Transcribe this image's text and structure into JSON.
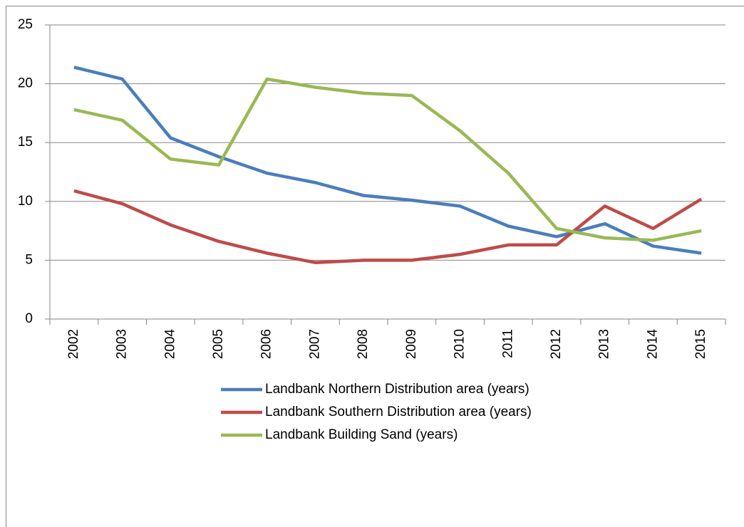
{
  "chart_data": {
    "type": "line",
    "categories": [
      "2002",
      "2003",
      "2004",
      "2005",
      "2006",
      "2007",
      "2008",
      "2009",
      "2010",
      "2011",
      "2012",
      "2013",
      "2014",
      "2015"
    ],
    "series": [
      {
        "name": "Landbank Northern Distribution area (years)",
        "color": "#4a7ebb",
        "values": [
          21.4,
          20.4,
          15.4,
          13.8,
          12.4,
          11.6,
          10.5,
          10.1,
          9.6,
          7.9,
          7.0,
          8.1,
          6.2,
          5.6
        ]
      },
      {
        "name": "Landbank Southern Distribution area (years)",
        "color": "#be4b48",
        "values": [
          10.9,
          9.8,
          8.0,
          6.6,
          5.6,
          4.8,
          5.0,
          5.0,
          5.5,
          6.3,
          6.3,
          9.6,
          7.7,
          10.2
        ]
      },
      {
        "name": "Landbank Building Sand (years)",
        "color": "#98b954",
        "values": [
          17.8,
          16.9,
          13.6,
          13.1,
          20.4,
          19.7,
          19.2,
          19.0,
          16.0,
          12.4,
          7.7,
          6.9,
          6.7,
          7.5
        ]
      }
    ],
    "ylim": [
      0,
      25
    ],
    "yticks": [
      0,
      5,
      10,
      15,
      20,
      25
    ],
    "grid": true,
    "legend": "bottom"
  }
}
